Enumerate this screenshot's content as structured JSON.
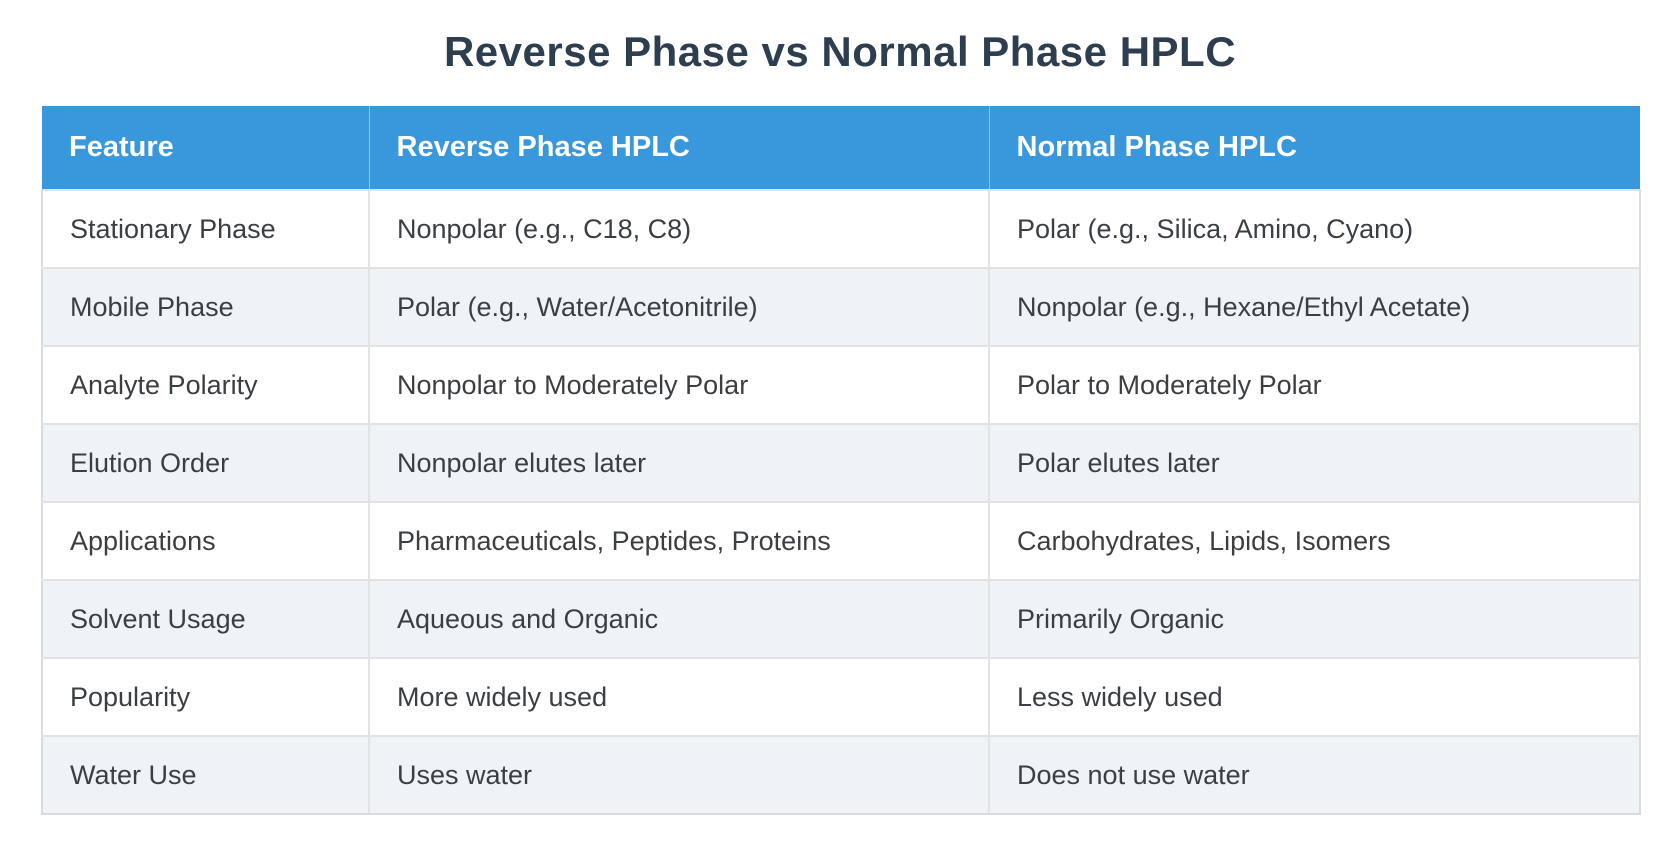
{
  "page": {
    "title": "Reverse Phase vs Normal Phase HPLC"
  },
  "table": {
    "columns": [
      "Feature",
      "Reverse Phase HPLC",
      "Normal Phase HPLC"
    ],
    "rows": [
      {
        "feature": "Stationary Phase",
        "reverse": "Nonpolar (e.g., C18, C8)",
        "normal": "Polar (e.g., Silica, Amino, Cyano)"
      },
      {
        "feature": "Mobile Phase",
        "reverse": "Polar (e.g., Water/Acetonitrile)",
        "normal": "Nonpolar (e.g., Hexane/Ethyl Acetate)"
      },
      {
        "feature": "Analyte Polarity",
        "reverse": "Nonpolar to Moderately Polar",
        "normal": "Polar to Moderately Polar"
      },
      {
        "feature": "Elution Order",
        "reverse": "Nonpolar elutes later",
        "normal": "Polar elutes later"
      },
      {
        "feature": "Applications",
        "reverse": "Pharmaceuticals, Peptides, Proteins",
        "normal": "Carbohydrates, Lipids, Isomers"
      },
      {
        "feature": "Solvent Usage",
        "reverse": "Aqueous and Organic",
        "normal": "Primarily Organic"
      },
      {
        "feature": "Popularity",
        "reverse": "More widely used",
        "normal": "Less widely used"
      },
      {
        "feature": "Water Use",
        "reverse": "Uses water",
        "normal": "Does not use water"
      }
    ]
  },
  "colors": {
    "header_bg": "#3898db",
    "header_text": "#ffffff",
    "title_text": "#2c3e50",
    "body_text": "#3a3f44",
    "row_alt_bg": "#eff3f8",
    "border_color": "#e0e2e4",
    "outer_border": "#d9dbdd",
    "page_bg": "#ffffff"
  }
}
